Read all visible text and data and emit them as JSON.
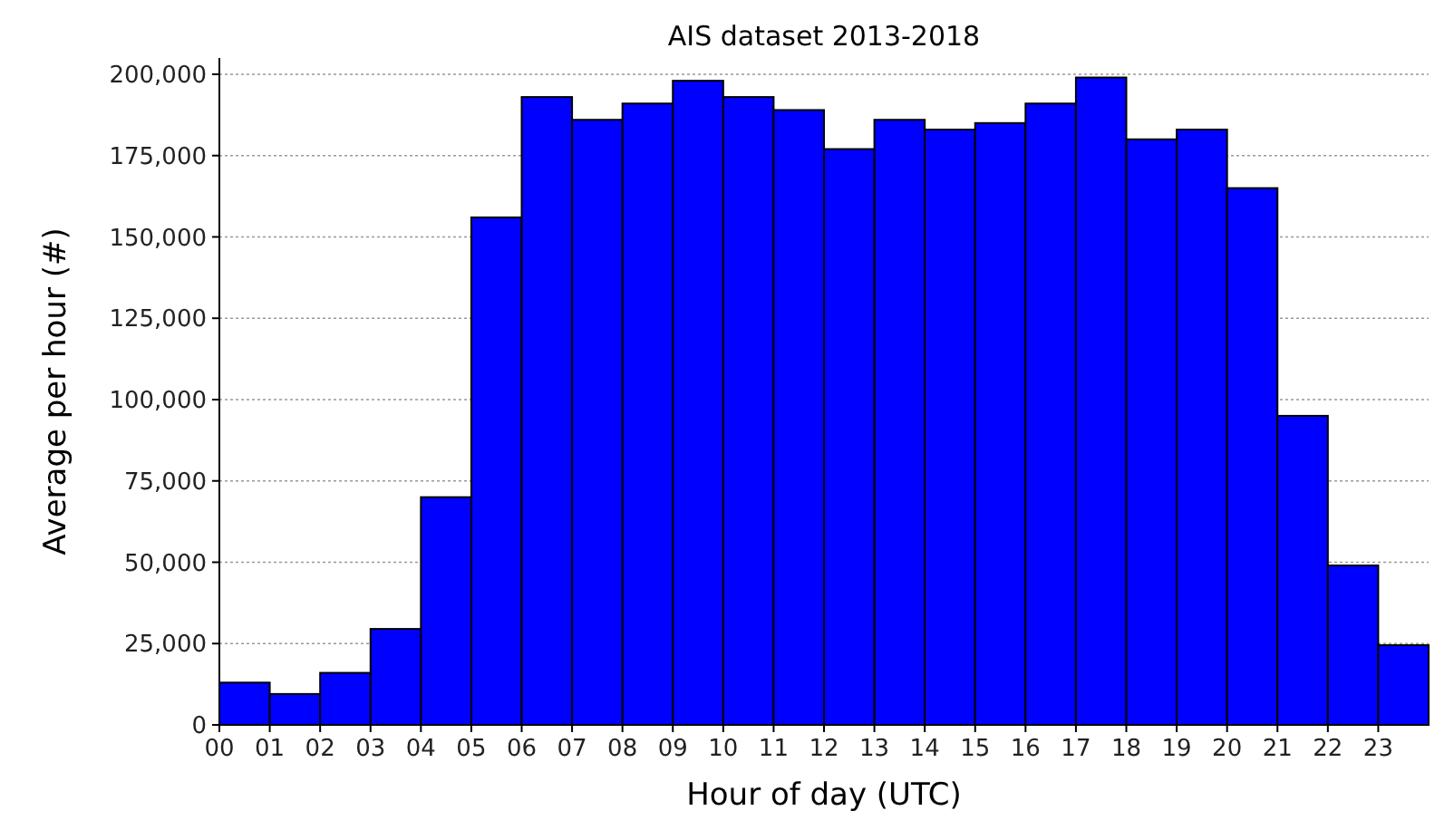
{
  "chart_data": {
    "type": "histogram",
    "title": "AIS dataset 2013-2018",
    "xlabel": "Hour of day (UTC)",
    "ylabel": "Average per hour (#)",
    "bins": [
      0,
      1,
      2,
      3,
      4,
      5,
      6,
      7,
      8,
      9,
      10,
      11,
      12,
      13,
      14,
      15,
      16,
      17,
      18,
      19,
      20,
      21,
      22,
      23,
      24
    ],
    "values": [
      13000,
      9500,
      16000,
      29500,
      70000,
      156000,
      193000,
      186000,
      191000,
      198000,
      193000,
      189000,
      177000,
      186000,
      183000,
      185000,
      191000,
      199000,
      180000,
      183000,
      165000,
      95000,
      49000,
      24500
    ],
    "color": "#0000ff",
    "xlim": [
      0,
      24
    ],
    "xticks": [
      {
        "value": 0,
        "label": "00"
      },
      {
        "value": 1,
        "label": "01"
      },
      {
        "value": 2,
        "label": "02"
      },
      {
        "value": 3,
        "label": "03"
      },
      {
        "value": 4,
        "label": "04"
      },
      {
        "value": 5,
        "label": "05"
      },
      {
        "value": 6,
        "label": "06"
      },
      {
        "value": 7,
        "label": "07"
      },
      {
        "value": 8,
        "label": "08"
      },
      {
        "value": 9,
        "label": "09"
      },
      {
        "value": 10,
        "label": "10"
      },
      {
        "value": 11,
        "label": "11"
      },
      {
        "value": 12,
        "label": "12"
      },
      {
        "value": 13,
        "label": "13"
      },
      {
        "value": 14,
        "label": "14"
      },
      {
        "value": 15,
        "label": "15"
      },
      {
        "value": 16,
        "label": "16"
      },
      {
        "value": 17,
        "label": "17"
      },
      {
        "value": 18,
        "label": "18"
      },
      {
        "value": 19,
        "label": "19"
      },
      {
        "value": 20,
        "label": "20"
      },
      {
        "value": 21,
        "label": "21"
      },
      {
        "value": 22,
        "label": "22"
      },
      {
        "value": 23,
        "label": "23"
      }
    ],
    "ylim": [
      0,
      205000
    ],
    "yticks": [
      {
        "value": 0,
        "label": "0"
      },
      {
        "value": 25000,
        "label": "25,000"
      },
      {
        "value": 50000,
        "label": "50,000"
      },
      {
        "value": 75000,
        "label": "75,000"
      },
      {
        "value": 100000,
        "label": "100,000"
      },
      {
        "value": 125000,
        "label": "125,000"
      },
      {
        "value": 150000,
        "label": "150,000"
      },
      {
        "value": 175000,
        "label": "175,000"
      },
      {
        "value": 200000,
        "label": "200,000"
      }
    ],
    "grid": "y"
  }
}
